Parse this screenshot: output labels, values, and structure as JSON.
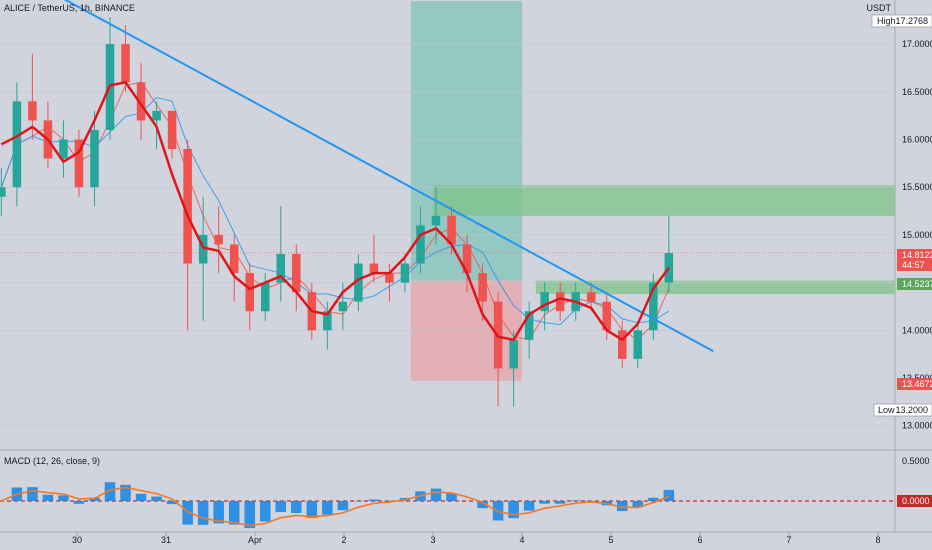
{
  "header": {
    "symbol_line": "ALICE / TetherUS, 1h, BINANCE",
    "currency": "USDT"
  },
  "price_axis": {
    "high_label": "High",
    "high_value": "17.2768",
    "low_label": "Low",
    "low_value": "13.2000",
    "last_price": "14.8122",
    "countdown": "44:57",
    "zone_level": "14.5237",
    "stop_level": "13.4672"
  },
  "macd": {
    "label": "MACD (12, 26, close, 9)",
    "zero_label": "0.0000",
    "tick_top": "0.5000"
  },
  "colors": {
    "background": "#d1d4dc",
    "up_candle": "#26a69a",
    "down_candle": "#ef5350",
    "trendline": "#2196f3",
    "hand_drawn_curve": "#e0151b",
    "supply_zone": "#7ec48a",
    "target_zone": "#8fc7c0",
    "stop_zone": "#e5a9ad",
    "macd_histogram": "#1e88e5",
    "signal_line": "#f07a27"
  },
  "chart_data": {
    "type": "candlestick",
    "price_ticks": [
      "17.0000",
      "16.5000",
      "16.0000",
      "15.5000",
      "15.0000",
      "14.5000",
      "14.0000",
      "13.5000",
      "13.0000"
    ],
    "x_tick_labels": [
      "30",
      "31",
      "Apr",
      "2",
      "3",
      "4",
      "5",
      "6",
      "7",
      "8"
    ],
    "ylim": [
      12.9,
      17.45
    ],
    "annotations": {
      "trendline": {
        "from": [
          -0.3,
          17.55
        ],
        "to": [
          7.15,
          13.78
        ]
      },
      "supply_zone": {
        "x": [
          2.0,
          3.63
        ],
        "y": [
          15.2,
          15.52
        ]
      },
      "demand_zone": {
        "x": [
          2.2,
          4.3
        ],
        "y": [
          14.38,
          14.52
        ]
      },
      "long_position": {
        "x": [
          3.75,
          5.0
        ],
        "entry": 14.52,
        "target": 17.45,
        "stop": 13.47
      }
    },
    "series": [
      {
        "name": "ALICE / TetherUS",
        "ohlc_sampled": [
          [
            15.4,
            15.7,
            15.2,
            15.5
          ],
          [
            15.5,
            16.6,
            15.3,
            16.4
          ],
          [
            16.4,
            16.9,
            16.0,
            16.2
          ],
          [
            16.2,
            16.4,
            15.7,
            15.8
          ],
          [
            15.8,
            16.2,
            15.6,
            16.0
          ],
          [
            16.0,
            16.1,
            15.4,
            15.5
          ],
          [
            15.5,
            16.3,
            15.3,
            16.1
          ],
          [
            16.1,
            17.28,
            16.0,
            17.0
          ],
          [
            17.0,
            17.2,
            16.5,
            16.6
          ],
          [
            16.6,
            16.8,
            16.0,
            16.2
          ],
          [
            16.2,
            16.4,
            15.9,
            16.3
          ],
          [
            16.3,
            16.3,
            15.8,
            15.9
          ],
          [
            15.9,
            16.0,
            14.0,
            14.7
          ],
          [
            14.7,
            15.4,
            14.1,
            15.0
          ],
          [
            15.0,
            15.3,
            14.6,
            14.9
          ],
          [
            14.9,
            15.0,
            14.3,
            14.6
          ],
          [
            14.6,
            14.7,
            14.0,
            14.2
          ],
          [
            14.2,
            14.6,
            14.1,
            14.5
          ],
          [
            14.5,
            15.3,
            14.3,
            14.8
          ],
          [
            14.8,
            14.9,
            14.2,
            14.4
          ],
          [
            14.4,
            14.5,
            13.9,
            14.0
          ],
          [
            14.0,
            14.3,
            13.8,
            14.2
          ],
          [
            14.2,
            14.5,
            14.0,
            14.3
          ],
          [
            14.3,
            14.8,
            14.2,
            14.7
          ],
          [
            14.7,
            15.0,
            14.5,
            14.6
          ],
          [
            14.6,
            14.7,
            14.3,
            14.5
          ],
          [
            14.5,
            14.8,
            14.4,
            14.7
          ],
          [
            14.7,
            15.3,
            14.6,
            15.1
          ],
          [
            15.1,
            15.5,
            14.9,
            15.2
          ],
          [
            15.2,
            15.3,
            14.8,
            14.9
          ],
          [
            14.9,
            15.0,
            14.4,
            14.6
          ],
          [
            14.6,
            14.7,
            14.1,
            14.3
          ],
          [
            14.3,
            14.4,
            13.2,
            13.6
          ],
          [
            13.6,
            14.0,
            13.2,
            13.9
          ],
          [
            13.9,
            14.3,
            13.7,
            14.2
          ],
          [
            14.2,
            14.5,
            14.0,
            14.4
          ],
          [
            14.4,
            14.5,
            14.1,
            14.2
          ],
          [
            14.2,
            14.5,
            14.1,
            14.4
          ],
          [
            14.4,
            14.5,
            14.2,
            14.3
          ],
          [
            14.3,
            14.4,
            13.9,
            14.0
          ],
          [
            14.0,
            14.1,
            13.6,
            13.7
          ],
          [
            13.7,
            14.1,
            13.6,
            14.0
          ],
          [
            14.0,
            14.6,
            13.9,
            14.5
          ],
          [
            14.5,
            15.2,
            14.4,
            14.81
          ]
        ]
      }
    ]
  }
}
